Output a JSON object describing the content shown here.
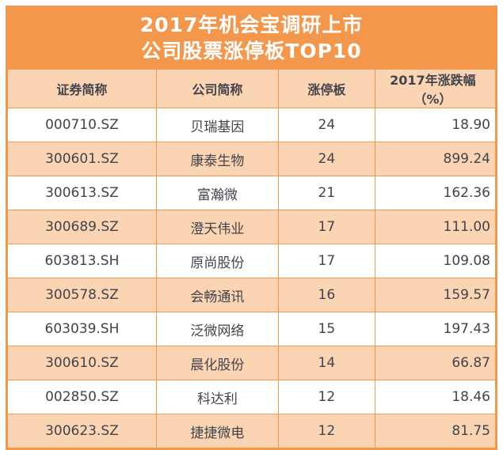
{
  "colors": {
    "accent_orange": "#F2974B",
    "row_peach": "#FBD4B3",
    "text_dark": "#42434C",
    "title_text": "#FFFFFF",
    "page_bg": "#FFFFFF"
  },
  "title": {
    "line1": "2017年机会宝调研上市",
    "line2": "公司股票涨停板TOP10"
  },
  "table": {
    "headers": [
      "证券简称",
      "公司简称",
      "涨停板",
      "2017年涨跌幅（%）"
    ],
    "rows": [
      {
        "code": "000710.SZ",
        "name": "贝瑞基因",
        "limit_ups": "24",
        "change_pct": "18.90"
      },
      {
        "code": "300601.SZ",
        "name": "康泰生物",
        "limit_ups": "24",
        "change_pct": "899.24"
      },
      {
        "code": "300613.SZ",
        "name": "富瀚微",
        "limit_ups": "21",
        "change_pct": "162.36"
      },
      {
        "code": "300689.SZ",
        "name": "澄天伟业",
        "limit_ups": "17",
        "change_pct": "111.00"
      },
      {
        "code": "603813.SH",
        "name": "原尚股份",
        "limit_ups": "17",
        "change_pct": "109.08"
      },
      {
        "code": "300578.SZ",
        "name": "会畅通讯",
        "limit_ups": "16",
        "change_pct": "159.57"
      },
      {
        "code": "603039.SH",
        "name": "泛微网络",
        "limit_ups": "15",
        "change_pct": "197.43"
      },
      {
        "code": "300610.SZ",
        "name": "晨化股份",
        "limit_ups": "14",
        "change_pct": "66.87"
      },
      {
        "code": "002850.SZ",
        "name": "科达利",
        "limit_ups": "12",
        "change_pct": "18.46"
      },
      {
        "code": "300623.SZ",
        "name": "捷捷微电",
        "limit_ups": "12",
        "change_pct": "81.75"
      }
    ]
  },
  "chart_data": {
    "type": "table",
    "title": "2017年机会宝调研上市公司股票涨停板TOP10",
    "columns": [
      "证券简称",
      "公司简称",
      "涨停板",
      "2017年涨跌幅（%）"
    ],
    "rows": [
      [
        "000710.SZ",
        "贝瑞基因",
        24,
        18.9
      ],
      [
        "300601.SZ",
        "康泰生物",
        24,
        899.24
      ],
      [
        "300613.SZ",
        "富瀚微",
        21,
        162.36
      ],
      [
        "300689.SZ",
        "澄天伟业",
        17,
        111.0
      ],
      [
        "603813.SH",
        "原尚股份",
        17,
        109.08
      ],
      [
        "300578.SZ",
        "会畅通讯",
        16,
        159.57
      ],
      [
        "603039.SH",
        "泛微网络",
        15,
        197.43
      ],
      [
        "300610.SZ",
        "晨化股份",
        14,
        66.87
      ],
      [
        "002850.SZ",
        "科达利",
        12,
        18.46
      ],
      [
        "300623.SZ",
        "捷捷微电",
        12,
        81.75
      ]
    ],
    "legend_position": "none",
    "grid": true
  }
}
